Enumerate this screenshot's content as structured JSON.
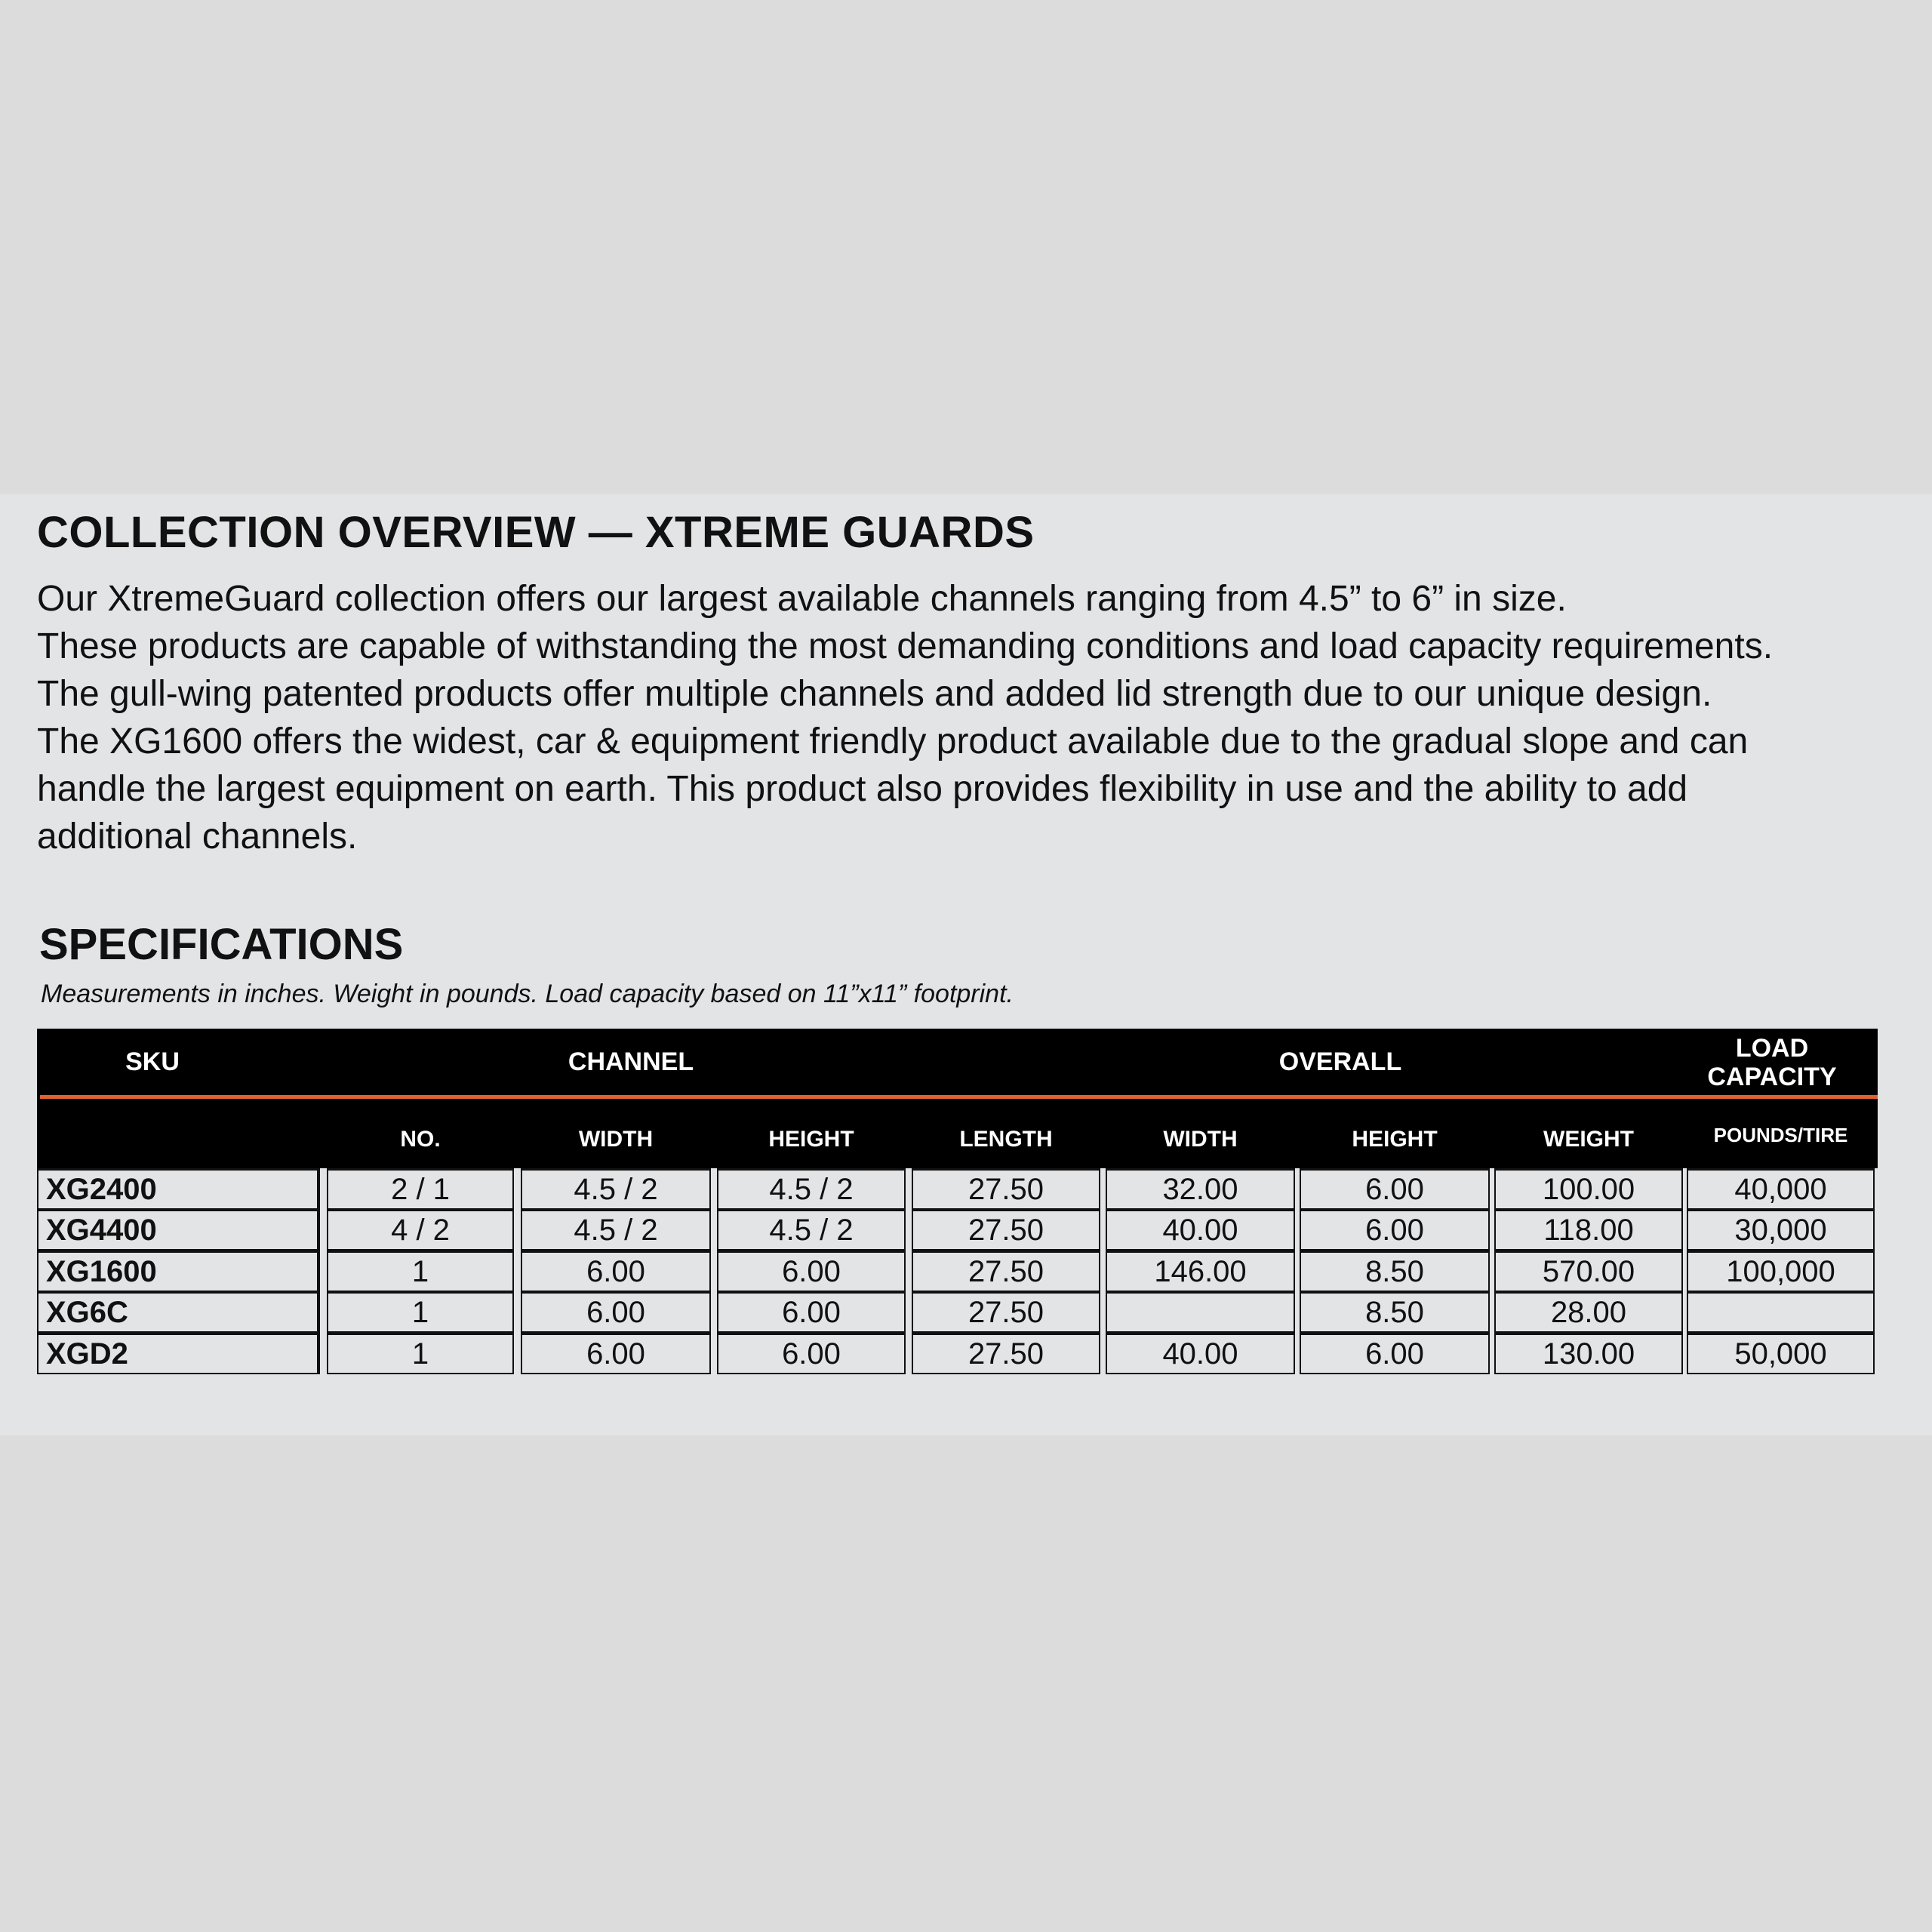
{
  "overview": {
    "title": "COLLECTION OVERVIEW — XTREME GUARDS",
    "lines": [
      "Our XtremeGuard collection offers our largest available channels ranging from 4.5” to 6” in size.",
      "These products are capable of withstanding the most demanding conditions and load capacity requirements.",
      "The gull-wing patented products offer multiple channels and added lid strength due to our unique design.",
      "The XG1600 offers the widest, car & equipment friendly product available due to the gradual slope and can",
      "handle the largest equipment on earth. This product also provides flexibility in use and the ability to add",
      "additional channels."
    ]
  },
  "specifications": {
    "title": "SPECIFICATIONS",
    "note": "Measurements in inches. Weight in pounds. Load capacity based on 11”x11” footprint.",
    "group_headers": {
      "sku": "SKU",
      "channel": "CHANNEL",
      "overall": "OVERALL",
      "load_1": "LOAD",
      "load_2": "CAPACITY"
    },
    "columns": [
      "NO.",
      "WIDTH",
      "HEIGHT",
      "LENGTH",
      "WIDTH",
      "HEIGHT",
      "WEIGHT",
      "POUNDS/TIRE"
    ],
    "rows": [
      [
        "XG2400",
        "2 / 1",
        "4.5 / 2",
        "4.5 / 2",
        "27.50",
        "32.00",
        "6.00",
        "100.00",
        "40,000"
      ],
      [
        "XG4400",
        "4 / 2",
        "4.5 / 2",
        "4.5 / 2",
        "27.50",
        "40.00",
        "6.00",
        "118.00",
        "30,000"
      ],
      [
        "XG1600",
        "1",
        "6.00",
        "6.00",
        "27.50",
        "146.00",
        "8.50",
        "570.00",
        "100,000"
      ],
      [
        "XG6C",
        "1",
        "6.00",
        "6.00",
        "27.50",
        "",
        "8.50",
        "28.00",
        ""
      ],
      [
        "XGD2",
        "1",
        "6.00",
        "6.00",
        "27.50",
        "40.00",
        "6.00",
        "130.00",
        "50,000"
      ]
    ],
    "colors": {
      "header_bg": "#000000",
      "accent_line": "#e0622e"
    }
  }
}
